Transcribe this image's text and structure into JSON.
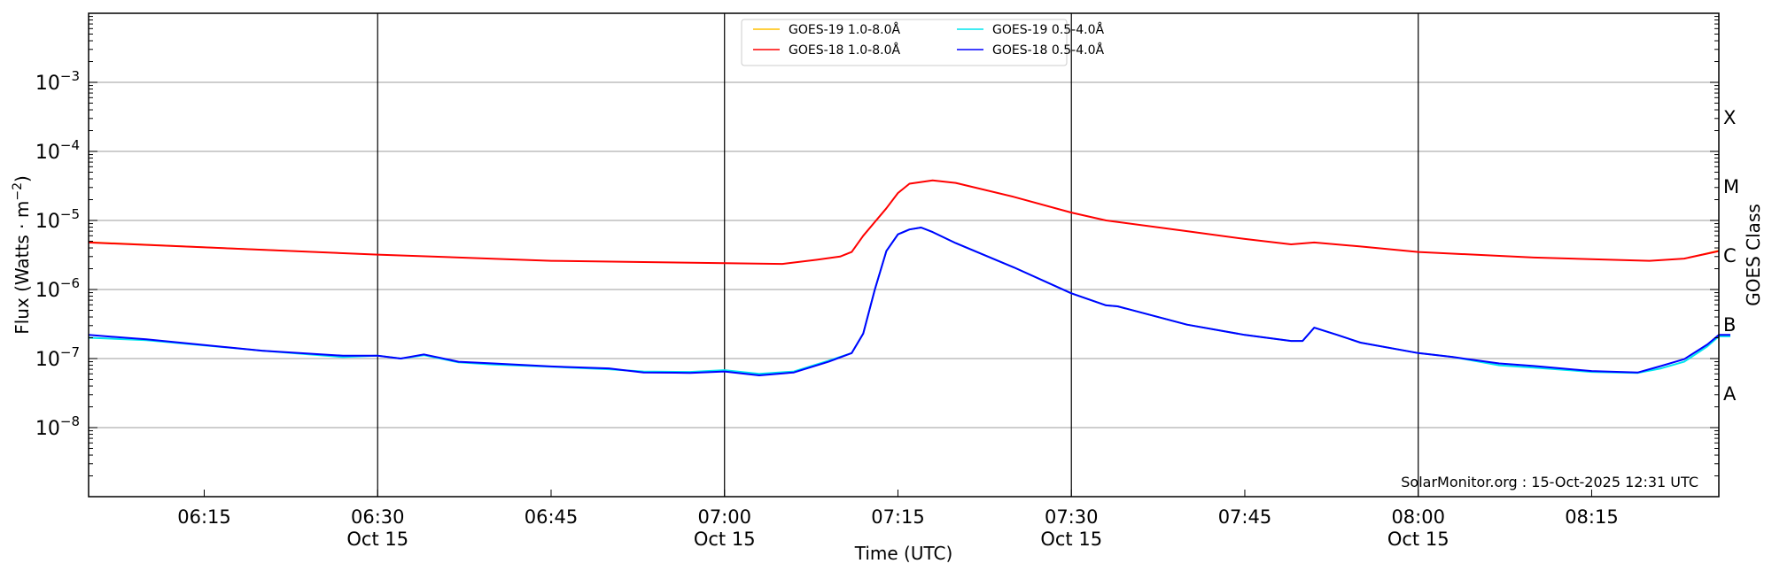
{
  "chart_data": {
    "type": "line",
    "xlabel": "Time (UTC)",
    "ylabel": "Flux (Watts · m⁻²)",
    "ylabel_base": "Flux (Watts · m",
    "ylabel_sup": "−2",
    "ylabel_end": ")",
    "right_ylabel": "GOES Class",
    "xlim": [
      "06:05",
      "08:26"
    ],
    "ylim": [
      1e-09,
      0.01
    ],
    "yscale": "log",
    "grid": "horizontal at decades, vertical at half-hours",
    "legend_position": "top-center",
    "y_ticks": [
      {
        "exp": -3,
        "base": "10",
        "sup": "−3"
      },
      {
        "exp": -4,
        "base": "10",
        "sup": "−4"
      },
      {
        "exp": -5,
        "base": "10",
        "sup": "−5"
      },
      {
        "exp": -6,
        "base": "10",
        "sup": "−6"
      },
      {
        "exp": -7,
        "base": "10",
        "sup": "−7"
      },
      {
        "exp": -8,
        "base": "10",
        "sup": "−8"
      }
    ],
    "x_ticks": [
      {
        "t": "06:15",
        "label": "06:15",
        "date": ""
      },
      {
        "t": "06:30",
        "label": "06:30",
        "date": "Oct 15"
      },
      {
        "t": "06:45",
        "label": "06:45",
        "date": ""
      },
      {
        "t": "07:00",
        "label": "07:00",
        "date": "Oct 15"
      },
      {
        "t": "07:15",
        "label": "07:15",
        "date": ""
      },
      {
        "t": "07:30",
        "label": "07:30",
        "date": "Oct 15"
      },
      {
        "t": "07:45",
        "label": "07:45",
        "date": ""
      },
      {
        "t": "08:00",
        "label": "08:00",
        "date": "Oct 15"
      },
      {
        "t": "08:15",
        "label": "08:15",
        "date": ""
      }
    ],
    "goes_classes": [
      {
        "label": "X",
        "exp": -3.5
      },
      {
        "label": "M",
        "exp": -4.5
      },
      {
        "label": "C",
        "exp": -5.5
      },
      {
        "label": "B",
        "exp": -6.5
      },
      {
        "label": "A",
        "exp": -7.5
      }
    ],
    "series": [
      {
        "name": "GOES-19 1.0-8.0Å",
        "color": "#ffc000",
        "x": [
          "06:05",
          "06:30",
          "06:45",
          "07:00",
          "07:05",
          "07:08",
          "07:10",
          "07:11",
          "07:12",
          "07:14",
          "07:15",
          "07:16",
          "07:18",
          "07:20",
          "07:25",
          "07:30",
          "07:33",
          "07:40",
          "07:45",
          "07:49",
          "07:51",
          "07:55",
          "08:00",
          "08:10",
          "08:20",
          "08:23",
          "08:26"
        ],
        "y": [
          4.9e-06,
          3.2e-06,
          2.6e-06,
          2.4e-06,
          2.35e-06,
          2.7e-06,
          3e-06,
          3.5e-06,
          6e-06,
          1.5e-05,
          2.5e-05,
          3.4e-05,
          3.8e-05,
          3.5e-05,
          2.2e-05,
          1.3e-05,
          1e-05,
          7e-06,
          5.4e-06,
          4.5e-06,
          4.8e-06,
          4.2e-06,
          3.5e-06,
          2.9e-06,
          2.6e-06,
          2.8e-06,
          3.7e-06
        ]
      },
      {
        "name": "GOES-19 0.5-4.0Å",
        "color": "#00e5ee",
        "x": [
          "06:05",
          "06:10",
          "06:20",
          "06:27",
          "06:30",
          "06:32",
          "06:34",
          "06:37",
          "06:40",
          "06:45",
          "06:50",
          "06:53",
          "06:57",
          "07:00",
          "07:03",
          "07:06",
          "07:09",
          "07:11",
          "07:12",
          "07:13",
          "07:14",
          "07:15",
          "07:16",
          "07:17",
          "07:18",
          "07:20",
          "07:25",
          "07:30",
          "07:33",
          "07:34",
          "07:40",
          "07:45",
          "07:49",
          "07:50",
          "07:51",
          "07:53",
          "07:55",
          "08:00",
          "08:03",
          "08:07",
          "08:10",
          "08:15",
          "08:19",
          "08:21",
          "08:23",
          "08:25",
          "08:26",
          "08:27"
        ],
        "y": [
          2e-07,
          1.85e-07,
          1.3e-07,
          1.05e-07,
          1.1e-07,
          1e-07,
          1.12e-07,
          8.8e-08,
          8.2e-08,
          7.6e-08,
          7e-08,
          6.5e-08,
          6.4e-08,
          6.8e-08,
          6e-08,
          6.5e-08,
          9.3e-08,
          1.2e-07,
          2.3e-07,
          1e-06,
          3.6e-06,
          6.3e-06,
          7.4e-06,
          7.9e-06,
          6.8e-06,
          4.7e-06,
          2.1e-06,
          8.8e-07,
          5.9e-07,
          5.7e-07,
          3.1e-07,
          2.2e-07,
          1.8e-07,
          1.8e-07,
          2.8e-07,
          2.2e-07,
          1.7e-07,
          1.2e-07,
          1.05e-07,
          8e-08,
          7.4e-08,
          6.4e-08,
          6.2e-08,
          7.2e-08,
          9e-08,
          1.5e-07,
          2.1e-07,
          2.1e-07
        ]
      },
      {
        "name": "GOES-18 1.0-8.0Å",
        "color": "#ff0000",
        "x": [
          "06:05",
          "06:30",
          "06:45",
          "07:00",
          "07:05",
          "07:08",
          "07:10",
          "07:11",
          "07:12",
          "07:14",
          "07:15",
          "07:16",
          "07:18",
          "07:20",
          "07:25",
          "07:30",
          "07:33",
          "07:40",
          "07:45",
          "07:49",
          "07:51",
          "07:55",
          "08:00",
          "08:10",
          "08:20",
          "08:23",
          "08:26"
        ],
        "y": [
          4.8e-06,
          3.2e-06,
          2.6e-06,
          2.4e-06,
          2.35e-06,
          2.7e-06,
          3e-06,
          3.5e-06,
          6e-06,
          1.5e-05,
          2.5e-05,
          3.4e-05,
          3.8e-05,
          3.5e-05,
          2.2e-05,
          1.3e-05,
          1e-05,
          7e-06,
          5.4e-06,
          4.5e-06,
          4.8e-06,
          4.2e-06,
          3.5e-06,
          2.9e-06,
          2.6e-06,
          2.8e-06,
          3.6e-06
        ]
      },
      {
        "name": "GOES-18 0.5-4.0Å",
        "color": "#0000ff",
        "x": [
          "06:05",
          "06:10",
          "06:20",
          "06:27",
          "06:30",
          "06:32",
          "06:34",
          "06:37",
          "06:40",
          "06:45",
          "06:50",
          "06:53",
          "06:57",
          "07:00",
          "07:03",
          "07:06",
          "07:09",
          "07:11",
          "07:12",
          "07:13",
          "07:14",
          "07:15",
          "07:16",
          "07:17",
          "07:18",
          "07:20",
          "07:25",
          "07:30",
          "07:33",
          "07:34",
          "07:40",
          "07:45",
          "07:49",
          "07:50",
          "07:51",
          "07:53",
          "07:55",
          "08:00",
          "08:03",
          "08:07",
          "08:10",
          "08:15",
          "08:19",
          "08:21",
          "08:23",
          "08:25",
          "08:26",
          "08:27"
        ],
        "y": [
          2.2e-07,
          1.9e-07,
          1.3e-07,
          1.1e-07,
          1.1e-07,
          1e-07,
          1.15e-07,
          9e-08,
          8.5e-08,
          7.7e-08,
          7.2e-08,
          6.3e-08,
          6.2e-08,
          6.5e-08,
          5.7e-08,
          6.3e-08,
          9e-08,
          1.2e-07,
          2.3e-07,
          1e-06,
          3.6e-06,
          6.3e-06,
          7.4e-06,
          7.9e-06,
          6.8e-06,
          4.7e-06,
          2.1e-06,
          8.8e-07,
          5.9e-07,
          5.7e-07,
          3.1e-07,
          2.2e-07,
          1.8e-07,
          1.8e-07,
          2.8e-07,
          2.2e-07,
          1.7e-07,
          1.2e-07,
          1.05e-07,
          8.5e-08,
          7.8e-08,
          6.6e-08,
          6.3e-08,
          7.8e-08,
          9.8e-08,
          1.6e-07,
          2.2e-07,
          2.2e-07
        ]
      }
    ],
    "legend_order": [
      0,
      1,
      2,
      3
    ],
    "annotation": "SolarMonitor.org : 15-Oct-2025 12:31 UTC"
  }
}
